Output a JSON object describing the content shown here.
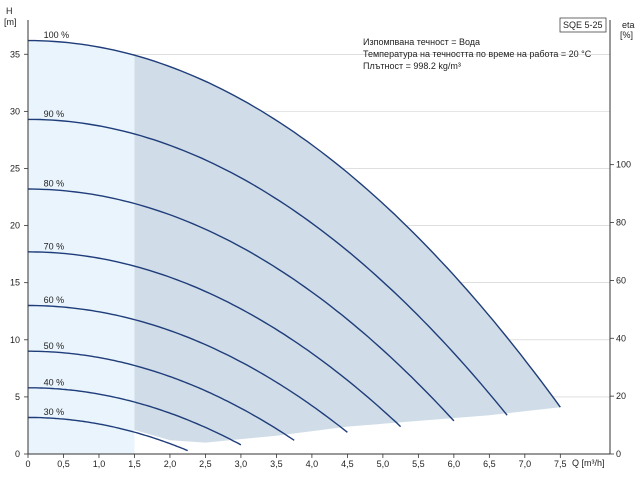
{
  "chart_data": {
    "type": "line",
    "model": "SQE 5-25",
    "y_left": {
      "label_top": "H",
      "label_unit": "[m]",
      "range": [
        0,
        38
      ],
      "ticks": [
        0,
        5,
        10,
        15,
        20,
        25,
        30,
        35
      ]
    },
    "y_right": {
      "label_top": "eta",
      "label_unit": "[%]",
      "range": [
        0,
        150
      ],
      "ticks": [
        0,
        20,
        40,
        60,
        80,
        100
      ]
    },
    "x": {
      "label": "Q [m³/h]",
      "range": [
        0,
        8.2
      ],
      "ticks": [
        0,
        0.5,
        1.0,
        1.5,
        2.0,
        2.5,
        3.0,
        3.5,
        4.0,
        4.5,
        5.0,
        5.5,
        6.0,
        6.5,
        7.0,
        7.5
      ],
      "tick_labels": [
        "0",
        "0,5",
        "1,0",
        "1,5",
        "2,0",
        "2,5",
        "3,0",
        "3,5",
        "4,0",
        "4,5",
        "5,0",
        "5,5",
        "6,0",
        "6,5",
        "7,0",
        "7,5"
      ]
    },
    "info_lines": [
      "Изпомпвана течност = Вода",
      "Температура на течността по време на работа = 20 °C",
      "Плътност = 998.2 kg/m³"
    ],
    "operating_region_start_q": 1.5,
    "min_flow_curve": [
      [
        1.5,
        2.1
      ],
      [
        2.0,
        1.2
      ],
      [
        2.5,
        1.0
      ],
      [
        3.5,
        1.6
      ],
      [
        4.5,
        2.4
      ],
      [
        5.5,
        2.9
      ],
      [
        6.5,
        3.4
      ],
      [
        7.5,
        4.1
      ]
    ],
    "colors": {
      "curve": "#1f3d7a",
      "light_fill": "#eaf4fc",
      "dark_fill": "#d0dde8",
      "grid": "#cccccc",
      "axis": "#333333"
    },
    "series": [
      {
        "name": "100 %",
        "h0": 36.2,
        "qmax": 7.5,
        "hend": 4.1
      },
      {
        "name": "90 %",
        "h0": 29.3,
        "qmax": 6.75,
        "hend": 3.4
      },
      {
        "name": "80 %",
        "h0": 23.2,
        "qmax": 6.0,
        "hend": 2.9
      },
      {
        "name": "70 %",
        "h0": 17.7,
        "qmax": 5.25,
        "hend": 2.4
      },
      {
        "name": "60 %",
        "h0": 13.0,
        "qmax": 4.5,
        "hend": 1.9
      },
      {
        "name": "50 %",
        "h0": 9.0,
        "qmax": 3.75,
        "hend": 1.2
      },
      {
        "name": "40 %",
        "h0": 5.8,
        "qmax": 3.0,
        "hend": 0.8
      },
      {
        "name": "30 %",
        "h0": 3.2,
        "qmax": 2.25,
        "hend": 0.3
      }
    ]
  }
}
